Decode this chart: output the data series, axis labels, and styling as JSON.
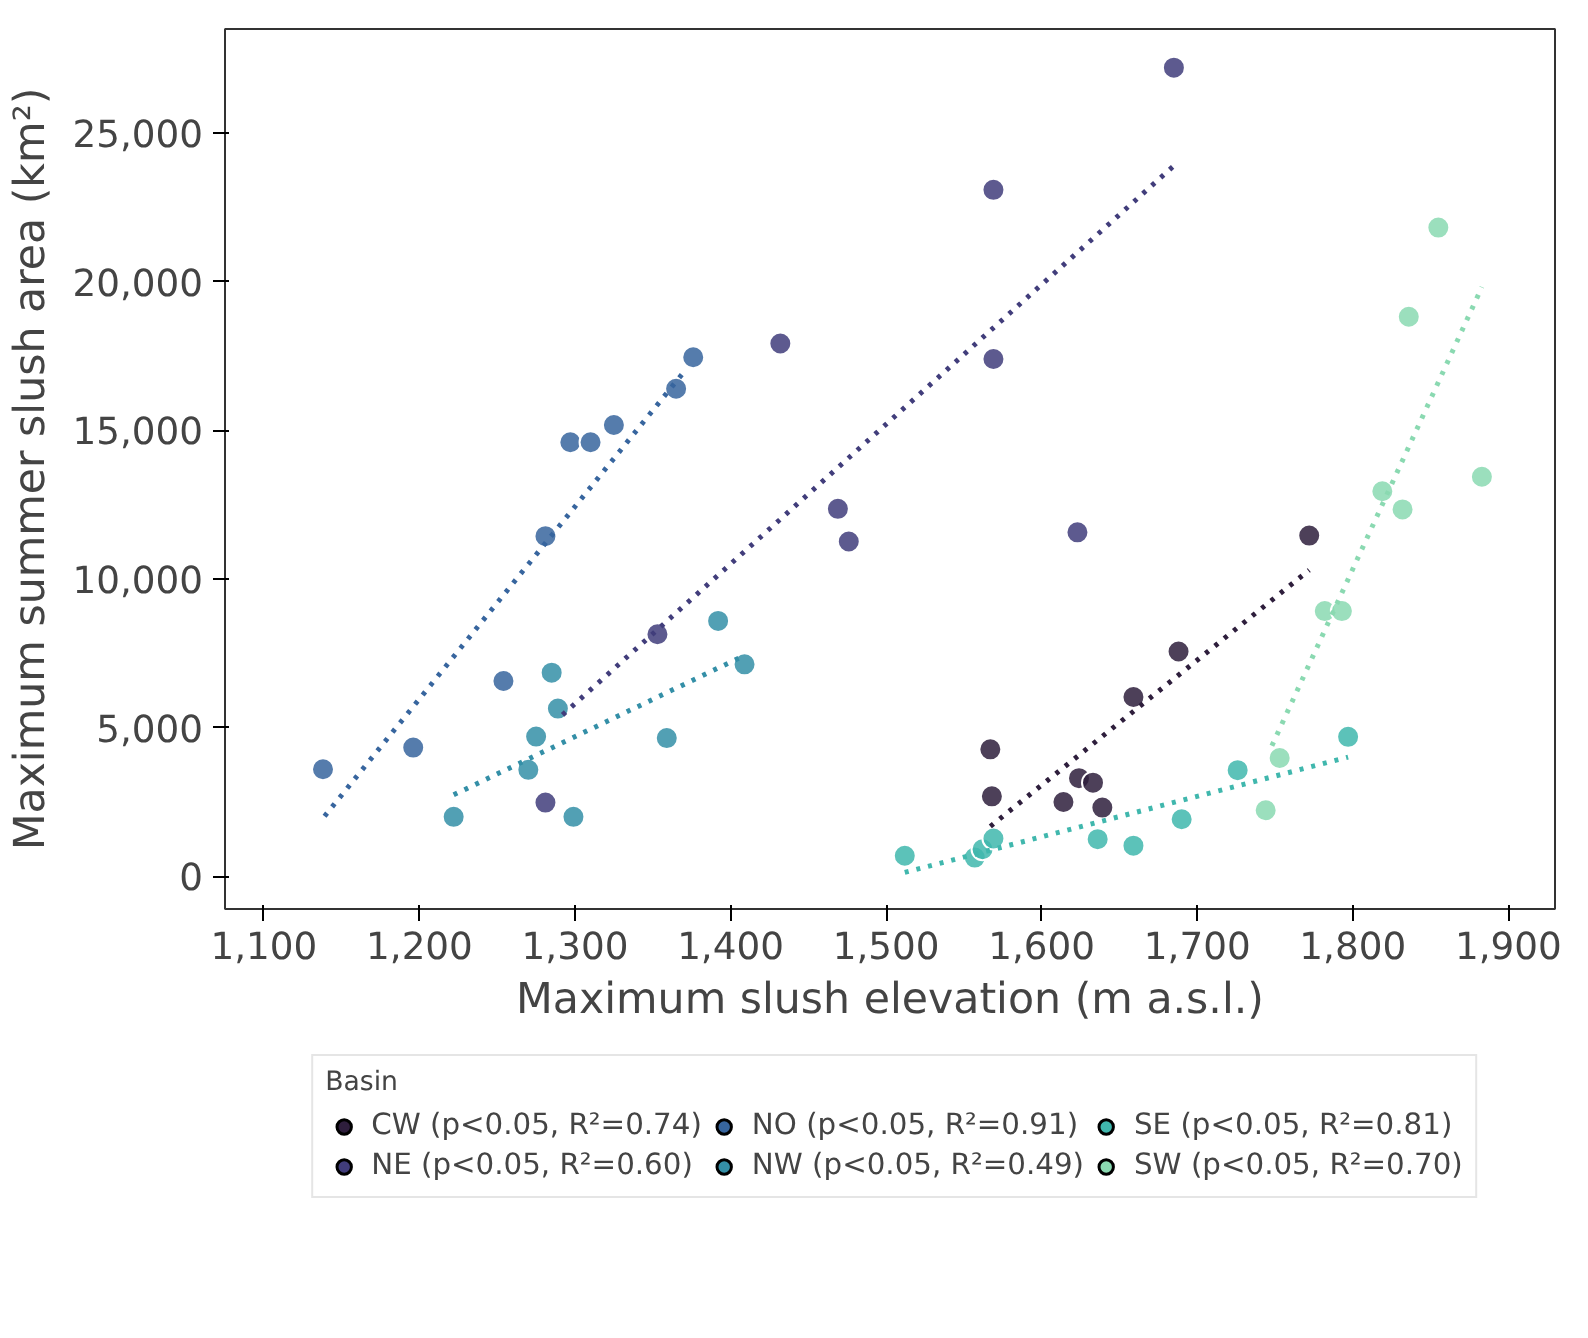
{
  "chart_data": {
    "type": "scatter",
    "xlabel": "Maximum slush elevation (m a.s.l.)",
    "ylabel": "Maximum summer slush area (km²)",
    "legend_title": "Basin",
    "legend": "bottom",
    "grid": false,
    "marker": "circle",
    "xlim": [
      1075,
      1930
    ],
    "xticks": [
      {
        "value": 1100,
        "label": "1,100"
      },
      {
        "value": 1200,
        "label": "1,200"
      },
      {
        "value": 1300,
        "label": "1,300"
      },
      {
        "value": 1400,
        "label": "1,400"
      },
      {
        "value": 1500,
        "label": "1,500"
      },
      {
        "value": 1600,
        "label": "1,600"
      },
      {
        "value": 1700,
        "label": "1,700"
      },
      {
        "value": 1800,
        "label": "1,800"
      },
      {
        "value": 1900,
        "label": "1,900"
      }
    ],
    "ylim": [
      -1100,
      28500
    ],
    "yticks": [
      0,
      {
        "value": 5000,
        "label": "5,000"
      },
      {
        "value": 10000,
        "label": "10,000"
      },
      {
        "value": 15000,
        "label": "15,000"
      },
      {
        "value": 20000,
        "label": "20,000"
      },
      {
        "value": 25000,
        "label": "25,000"
      }
    ],
    "series": [
      {
        "name": "CW (p<0.05, R²=0.74)",
        "color": "#2e1e3c",
        "x": [
          1567,
          1568,
          1614,
          1624,
          1633,
          1639,
          1659,
          1688,
          1772
        ],
        "values": [
          4270,
          2690,
          2500,
          3300,
          3150,
          2310,
          6030,
          7560,
          11460
        ]
      },
      {
        "name": "NE (p<0.05, R²=0.60)",
        "color": "#413d7b",
        "x": [
          1281,
          1353,
          1432,
          1469,
          1476,
          1569,
          1569,
          1623,
          1685
        ],
        "values": [
          2480,
          8140,
          17920,
          12360,
          11260,
          23090,
          17400,
          11570,
          27200
        ]
      },
      {
        "name": "NO (p<0.05, R²=0.91)",
        "color": "#37659e",
        "x": [
          1138,
          1196,
          1254,
          1281,
          1297,
          1310,
          1325,
          1365,
          1376
        ],
        "values": [
          3600,
          4330,
          6570,
          11440,
          14600,
          14600,
          15180,
          16400,
          17460
        ]
      },
      {
        "name": "NW (p<0.05, R²=0.49)",
        "color": "#348fa7",
        "x": [
          1222,
          1270,
          1275,
          1285,
          1289,
          1299,
          1359,
          1392,
          1409
        ],
        "values": [
          2000,
          3580,
          4700,
          6850,
          5640,
          2000,
          4650,
          8590,
          7130
        ]
      },
      {
        "name": "SE (p<0.05, R²=0.81)",
        "color": "#40b7ad",
        "x": [
          1512,
          1557,
          1562,
          1569,
          1636,
          1659,
          1690,
          1726,
          1797
        ],
        "values": [
          690,
          630,
          910,
          1270,
          1250,
          1030,
          1920,
          3570,
          4690
        ]
      },
      {
        "name": "SW (p<0.05, R²=0.70)",
        "color": "#8ad9b1",
        "x": [
          1744,
          1753,
          1782,
          1793,
          1819,
          1832,
          1836,
          1855,
          1883
        ],
        "values": [
          2220,
          3980,
          8920,
          8920,
          12950,
          12340,
          18820,
          21820,
          13440
        ]
      },
      {
        "type": "line",
        "line_style": "dotted",
        "marker": "none",
        "color": "#2e1e3c",
        "x": [
          1567,
          1772
        ],
        "values": [
          1680,
          10300
        ]
      },
      {
        "type": "line",
        "line_style": "dotted",
        "marker": "none",
        "color": "#413d7b",
        "x": [
          1292,
          1685
        ],
        "values": [
          5430,
          23900
        ]
      },
      {
        "type": "line",
        "line_style": "dotted",
        "marker": "none",
        "color": "#37659e",
        "x": [
          1139,
          1369
        ],
        "values": [
          2020,
          16900
        ]
      },
      {
        "type": "line",
        "line_style": "dotted",
        "marker": "none",
        "color": "#348fa7",
        "x": [
          1222,
          1407
        ],
        "values": [
          2740,
          7380
        ]
      },
      {
        "type": "line",
        "line_style": "dotted",
        "marker": "none",
        "color": "#40b7ad",
        "x": [
          1512,
          1797
        ],
        "values": [
          130,
          4010
        ]
      },
      {
        "type": "line",
        "line_style": "dotted",
        "marker": "none",
        "color": "#8ad9b1",
        "x": [
          1748,
          1883
        ],
        "values": [
          4390,
          19820
        ]
      }
    ]
  }
}
